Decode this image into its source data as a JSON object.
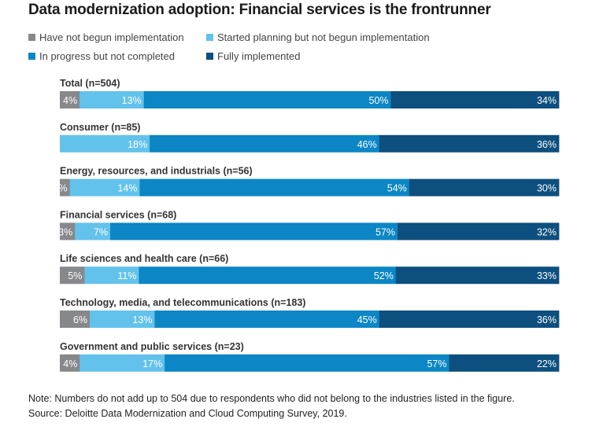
{
  "title": "Data modernization adoption: Financial services is the frontrunner",
  "legend": [
    {
      "label": "Have not begun implementation",
      "color": "#87888b"
    },
    {
      "label": "Started planning but not begun implementation",
      "color": "#62c2ec"
    },
    {
      "label": "In progress but not completed",
      "color": "#0c86c4"
    },
    {
      "label": "Fully implemented",
      "color": "#0d4f7e"
    }
  ],
  "chart_data": {
    "type": "bar",
    "orientation": "horizontal",
    "stacked": true,
    "categories": [
      "Total (n=504)",
      "Consumer (n=85)",
      "Energy, resources, and industrials (n=56)",
      "Financial services (n=68)",
      "Life sciences and health care (n=66)",
      "Technology, media, and telecommunications (n=183)",
      "Government and public services (n=23)"
    ],
    "series": [
      {
        "name": "Have not begun implementation",
        "values": [
          4,
          0,
          2,
          3,
          5,
          6,
          4
        ]
      },
      {
        "name": "Started planning but not begun implementation",
        "values": [
          13,
          18,
          14,
          7,
          11,
          13,
          17
        ]
      },
      {
        "name": "In progress but not completed",
        "values": [
          50,
          46,
          54,
          57,
          52,
          45,
          57
        ]
      },
      {
        "name": "Fully implemented",
        "values": [
          34,
          36,
          30,
          32,
          33,
          36,
          22
        ]
      }
    ],
    "unit": "%",
    "legend_position": "top-left"
  },
  "notes": {
    "note": "Note: Numbers do not add up to 504 due to respondents who did not belong to the industries listed in the figure.",
    "source": "Source: Deloitte Data Modernization and Cloud Computing Survey, 2019."
  }
}
